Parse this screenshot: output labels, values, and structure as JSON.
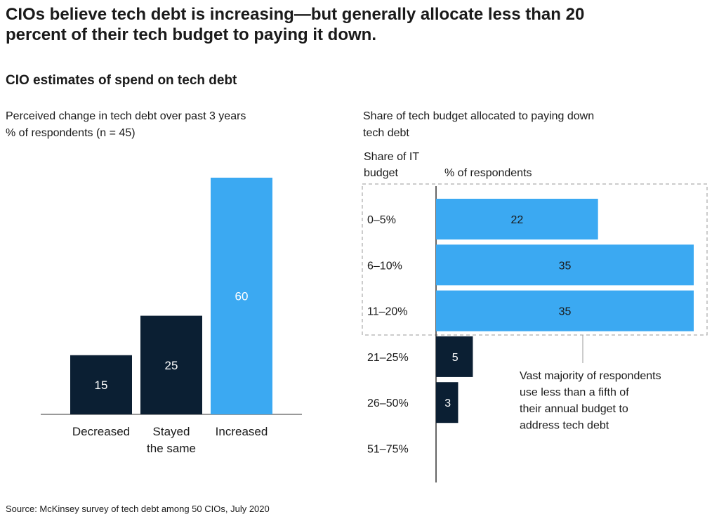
{
  "title": "CIOs believe tech debt is increasing—but generally allocate less than 20 percent of their tech budget to paying it down.",
  "subtitle": "CIO estimates of spend on tech debt",
  "source": "Source: McKinsey survey of tech debt among 50 CIOs, July 2020",
  "chart_data": [
    {
      "type": "bar",
      "title": "Perceived change in tech debt over past 3 years",
      "subtitle": "% of respondents (n = 45)",
      "categories": [
        "Decreased",
        "Stayed the same",
        "Increased"
      ],
      "values": [
        15,
        25,
        60
      ],
      "colors": [
        "#0b1f33",
        "#0b1f33",
        "#3ba9f2"
      ]
    },
    {
      "type": "hbar",
      "title": "Share of tech budget allocated to paying down tech debt",
      "y_label": "Share of IT budget",
      "x_label": "% of respondents",
      "categories": [
        "0–5%",
        "6–10%",
        "11–20%",
        "21–25%",
        "26–50%",
        "51–75%"
      ],
      "values": [
        22,
        35,
        35,
        5,
        3,
        null
      ],
      "colors": [
        "#3ba9f2",
        "#3ba9f2",
        "#3ba9f2",
        "#0b1f33",
        "#0b1f33",
        "#0b1f33"
      ],
      "annotation": "Vast majority of respondents use less than a fifth of their annual budget to address tech debt"
    }
  ]
}
